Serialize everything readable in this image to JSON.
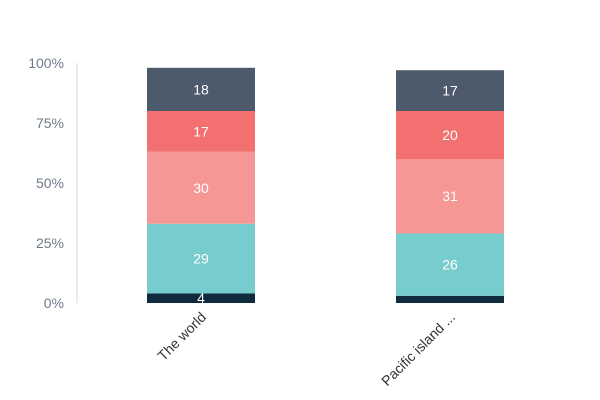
{
  "chart_data": {
    "type": "bar",
    "stacked": true,
    "categories": [
      "The world",
      "Pacific island ..."
    ],
    "series": [
      {
        "values": [
          4,
          3
        ],
        "color": "#0f2a3d",
        "labels": [
          "4",
          ""
        ]
      },
      {
        "values": [
          29,
          26
        ],
        "color": "#77ccce",
        "labels": [
          "29",
          "26"
        ]
      },
      {
        "values": [
          30,
          31
        ],
        "color": "#f59794",
        "labels": [
          "30",
          "31"
        ]
      },
      {
        "values": [
          17,
          20
        ],
        "color": "#f27170",
        "labels": [
          "17",
          "20"
        ]
      },
      {
        "values": [
          18,
          17
        ],
        "color": "#4d5a6b",
        "labels": [
          "18",
          "17"
        ]
      }
    ],
    "yticks": [
      "0%",
      "25%",
      "50%",
      "75%",
      "100%"
    ],
    "ylim": [
      0,
      100
    ],
    "grid": false
  }
}
